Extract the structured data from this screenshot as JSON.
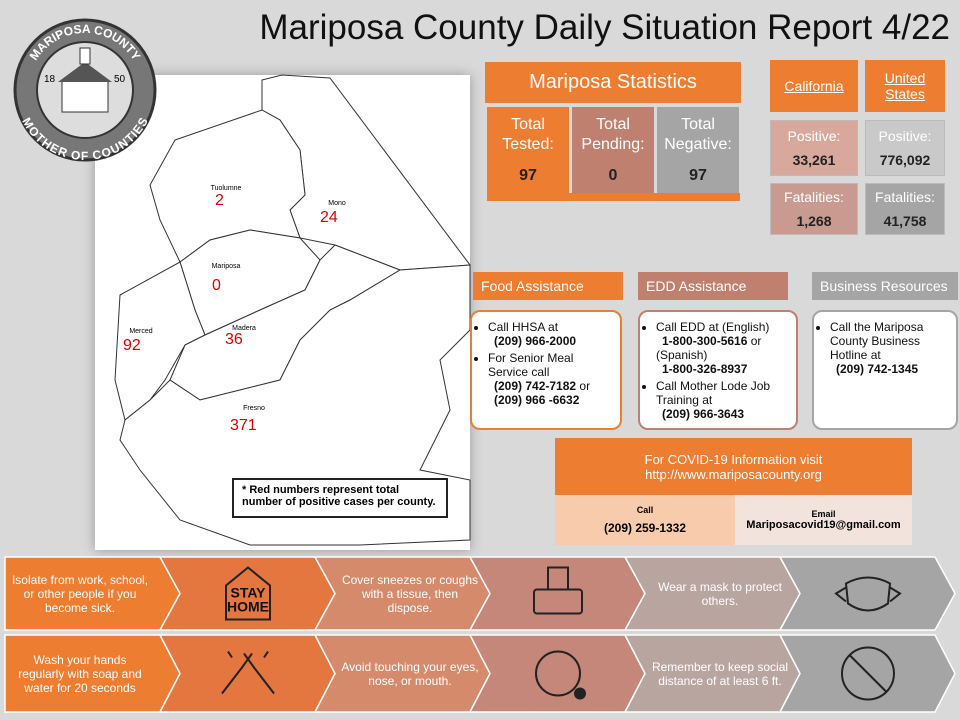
{
  "header": {
    "title": "Mariposa County Daily Situation Report 4/22"
  },
  "logo": {
    "top": "MARIPOSA COUNTY",
    "bottom": "MOTHER OF COUNTIES",
    "left": "18",
    "right": "50"
  },
  "map": {
    "counties": [
      {
        "name": "Tuolumne",
        "cases": 2
      },
      {
        "name": "Mono",
        "cases": 24
      },
      {
        "name": "Mariposa",
        "cases": 0
      },
      {
        "name": "Merced",
        "cases": 92
      },
      {
        "name": "Madera",
        "cases": 36
      },
      {
        "name": "Fresno",
        "cases": 371
      }
    ],
    "note": "* Red numbers represent total number of  positive cases per county."
  },
  "mariposa_stats": {
    "title": "Mariposa Statistics",
    "cells": [
      {
        "label": "Total Tested:",
        "value": 97
      },
      {
        "label": "Total Pending:",
        "value": 0
      },
      {
        "label": "Total Negative:",
        "value": 97
      }
    ]
  },
  "regions": [
    {
      "name": "California",
      "positive_label": "Positive:",
      "positive": "33,261",
      "fatalities_label": "Fatalities:",
      "fatalities": "1,268"
    },
    {
      "name": "United States",
      "positive_label": "Positive:",
      "positive": "776,092",
      "fatalities_label": "Fatalities:",
      "fatalities": "41,758"
    }
  ],
  "assistance": [
    {
      "title": "Food Assistance",
      "items": [
        [
          {
            "text": "Call HHSA at",
            "bold": false
          },
          {
            "text": "(209) 966-2000",
            "bold": true
          }
        ],
        [
          {
            "text": "For Senior Meal Service call",
            "bold": false
          },
          {
            "text": "(209) 742-7182",
            "bold": true
          },
          {
            "text": "or",
            "bold": false
          },
          {
            "text": "(209) 966 -6632",
            "bold": true
          }
        ]
      ]
    },
    {
      "title": "EDD Assistance",
      "items": [
        [
          {
            "text": "Call EDD at (English)",
            "bold": false
          },
          {
            "text": "1-800-300-5616",
            "bold": true
          },
          {
            "text": "or (Spanish)",
            "bold": false
          },
          {
            "text": "1-800-326-8937",
            "bold": true
          }
        ],
        [
          {
            "text": "Call Mother Lode Job Training at",
            "bold": false
          },
          {
            "text": "(209) 966-3643",
            "bold": true
          }
        ]
      ]
    },
    {
      "title": "Business Resources",
      "items": [
        [
          {
            "text": "Call the Mariposa County Business Hotline at",
            "bold": false
          },
          {
            "text": "(209) 742-1345",
            "bold": true
          }
        ]
      ]
    }
  ],
  "covid_info": {
    "line1": "For COVID-19 Information visit",
    "url": "http://www.mariposacounty.org",
    "call_label": "Call",
    "call": "(209) 259-1332",
    "email_label": "Email",
    "email": "Mariposacovid19@gmail.com"
  },
  "tips": {
    "rows": [
      [
        "Isolate from work, school, or other people if you become sick.",
        "Cover sneezes or coughs with a tissue, then dispose.",
        "Wear a mask to protect others."
      ],
      [
        "Wash your hands regularly with soap and water for 20 seconds",
        "Avoid touching your eyes, nose, or mouth.",
        "Remember to keep social distance of at least 6 ft."
      ]
    ],
    "stay_home": [
      "STAY",
      "HOME"
    ]
  }
}
